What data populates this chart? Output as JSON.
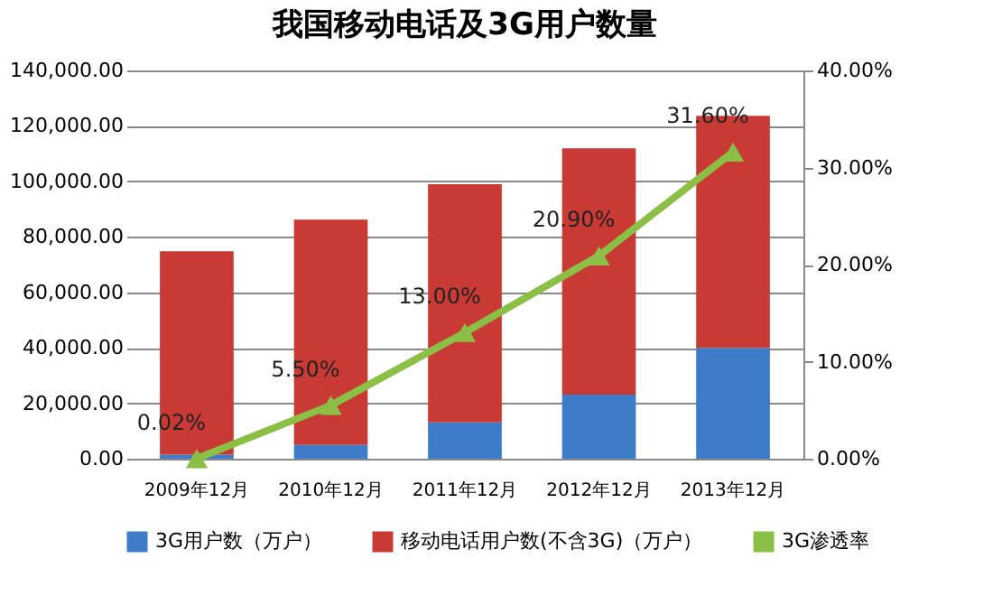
{
  "chart_data": {
    "type": "bar",
    "title": "我国移动电话及3G用户数量",
    "categories": [
      "2009年12月",
      "2010年12月",
      "2011年12月",
      "2012年12月",
      "2013年12月"
    ],
    "stacked": true,
    "series": [
      {
        "name": "3G用户数（万户）",
        "color": "#3d7cc9",
        "values": [
          1500,
          5000,
          13100,
          23100,
          40000
        ]
      },
      {
        "name": "移动电话用户数(不含3G)（万户）",
        "color": "#c93a35",
        "values": [
          73300,
          81200,
          85900,
          88800,
          83600
        ]
      },
      {
        "name": "3G渗透率",
        "type": "line",
        "axis": "y2",
        "color": "#8cbf45",
        "marker": "triangle",
        "values": [
          0.02,
          5.5,
          13.0,
          20.9,
          31.6
        ],
        "value_labels": [
          "0.02%",
          "5.50%",
          "13.00%",
          "20.90%",
          "31.60%"
        ]
      }
    ],
    "ylim": [
      0,
      140000
    ],
    "yticks": [
      {
        "value": 0,
        "label": "0.00"
      },
      {
        "value": 20000,
        "label": "20,000.00"
      },
      {
        "value": 40000,
        "label": "40,000.00"
      },
      {
        "value": 60000,
        "label": "60,000.00"
      },
      {
        "value": 80000,
        "label": "80,000.00"
      },
      {
        "value": 100000,
        "label": "100,000.00"
      },
      {
        "value": 120000,
        "label": "120,000.00"
      },
      {
        "value": 140000,
        "label": "140,000.00"
      }
    ],
    "y2lim": [
      0,
      40
    ],
    "y2ticks": [
      {
        "value": 0,
        "label": "0.00%"
      },
      {
        "value": 10,
        "label": "10.00%"
      },
      {
        "value": 20,
        "label": "20.00%"
      },
      {
        "value": 30,
        "label": "30.00%"
      },
      {
        "value": 40,
        "label": "40.00%"
      }
    ],
    "grid": "y",
    "legend": "bottom"
  }
}
